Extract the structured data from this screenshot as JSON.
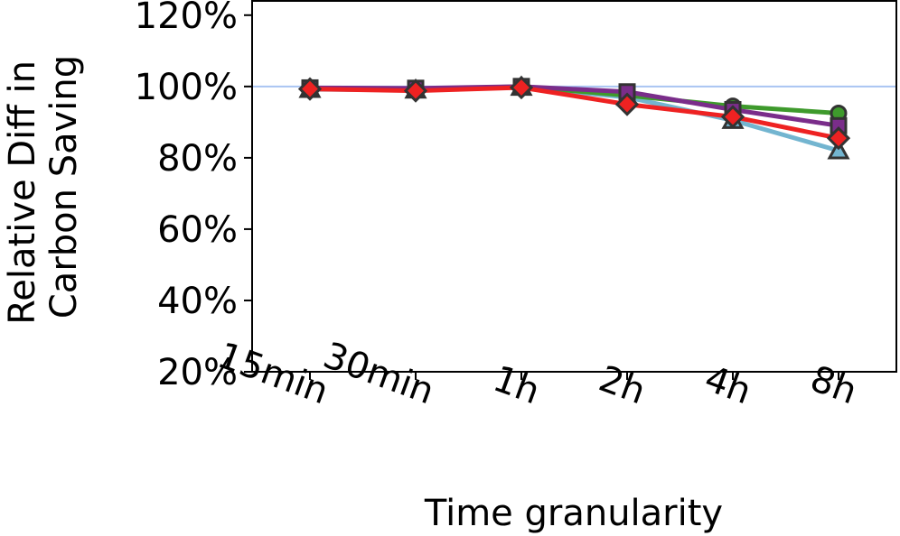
{
  "chart_data": {
    "type": "line",
    "title": "",
    "xlabel": "Time granularity",
    "ylabel": [
      "Relative Diff in",
      "Carbon Saving"
    ],
    "categories": [
      "15min",
      "30min",
      "1h",
      "2h",
      "4h",
      "8h"
    ],
    "yticks": [
      "20%",
      "40%",
      "60%",
      "80%",
      "100%",
      "120%"
    ],
    "ytick_values": [
      20,
      40,
      60,
      80,
      100,
      120
    ],
    "ylim": [
      20,
      124
    ],
    "reference_line": 100,
    "reference_color": "#a9c4f2",
    "grid": false,
    "legend": "none",
    "series": [
      {
        "marker": "triangle",
        "color": "#73b5d0",
        "values": [
          99.2,
          99.0,
          99.8,
          97.0,
          90.5,
          82.0
        ]
      },
      {
        "marker": "circle",
        "color": "#3e9a2c",
        "values": [
          99.5,
          99.2,
          100.0,
          97.5,
          94.5,
          92.5
        ]
      },
      {
        "marker": "square",
        "color": "#7a2d8a",
        "values": [
          99.6,
          99.5,
          100.0,
          98.5,
          93.5,
          89.0
        ]
      },
      {
        "marker": "diamond",
        "color": "#ee2222",
        "values": [
          99.3,
          98.8,
          99.7,
          95.0,
          91.5,
          85.5
        ]
      }
    ]
  }
}
